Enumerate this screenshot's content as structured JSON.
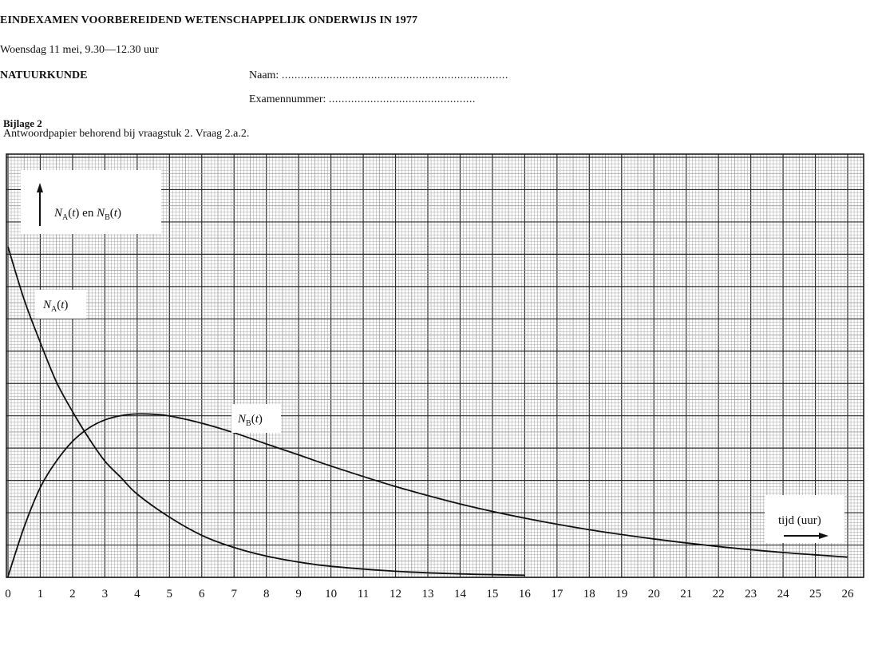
{
  "header": {
    "exam_title": "EINDEXAMEN VOORBEREIDEND WETENSCHAPPELIJK ONDERWIJS IN 1977",
    "date_line": "Woensdag 11 mei, 9.30—12.30 uur",
    "subject": "NATUURKUNDE",
    "name_label": "Naam:",
    "name_dots": ".......................................................................",
    "exam_number_label": "Examennummer:",
    "exam_number_dots": "..............................................",
    "bijlage": "Bijlage 2",
    "answer_note": "Antwoordpapier behorend bij vraagstuk 2. Vraag 2.a.2."
  },
  "chart_data": {
    "type": "line",
    "x_ticks": [
      "0",
      "1",
      "2",
      "3",
      "4",
      "5",
      "6",
      "7",
      "8",
      "9",
      "10",
      "11",
      "12",
      "13",
      "14",
      "15",
      "16",
      "17",
      "18",
      "19",
      "20",
      "21",
      "22",
      "23",
      "24",
      "25",
      "26"
    ],
    "xlim": [
      0,
      26
    ],
    "ylim": [
      0,
      1
    ],
    "grid": true,
    "y_axis_box": {
      "N": "N",
      "A": "A",
      "t": "t",
      "en": "en",
      "B": "B"
    },
    "x_axis_label": "tijd (uur)",
    "series": [
      {
        "name": "N_A(t)",
        "x": [
          0,
          0.5,
          1,
          1.5,
          2,
          2.5,
          3,
          3.5,
          4,
          5,
          6,
          7,
          8,
          9,
          10,
          12,
          14,
          16
        ],
        "values": [
          1.0,
          0.84,
          0.71,
          0.59,
          0.5,
          0.42,
          0.35,
          0.3,
          0.25,
          0.18,
          0.125,
          0.088,
          0.062,
          0.044,
          0.031,
          0.016,
          0.008,
          0.004
        ]
      },
      {
        "name": "N_B(t)",
        "x": [
          0,
          0.5,
          1,
          1.5,
          2,
          2.5,
          3,
          3.5,
          4,
          4.5,
          5,
          6,
          7,
          8,
          9,
          10,
          12,
          14,
          16,
          18,
          20,
          22,
          24,
          26
        ],
        "values": [
          0.0,
          0.15,
          0.27,
          0.35,
          0.41,
          0.45,
          0.475,
          0.488,
          0.493,
          0.492,
          0.487,
          0.465,
          0.436,
          0.402,
          0.369,
          0.335,
          0.273,
          0.22,
          0.177,
          0.142,
          0.114,
          0.091,
          0.073,
          0.059
        ]
      }
    ],
    "series_labels": [
      {
        "N": "N",
        "sub": "A",
        "t": "t"
      },
      {
        "N": "N",
        "sub": "B",
        "t": "t"
      }
    ],
    "colors": {
      "grid_fine": "#9a9a9a",
      "grid_major": "#2a2a2a",
      "curve": "#111111",
      "paper": "#ffffff"
    }
  }
}
